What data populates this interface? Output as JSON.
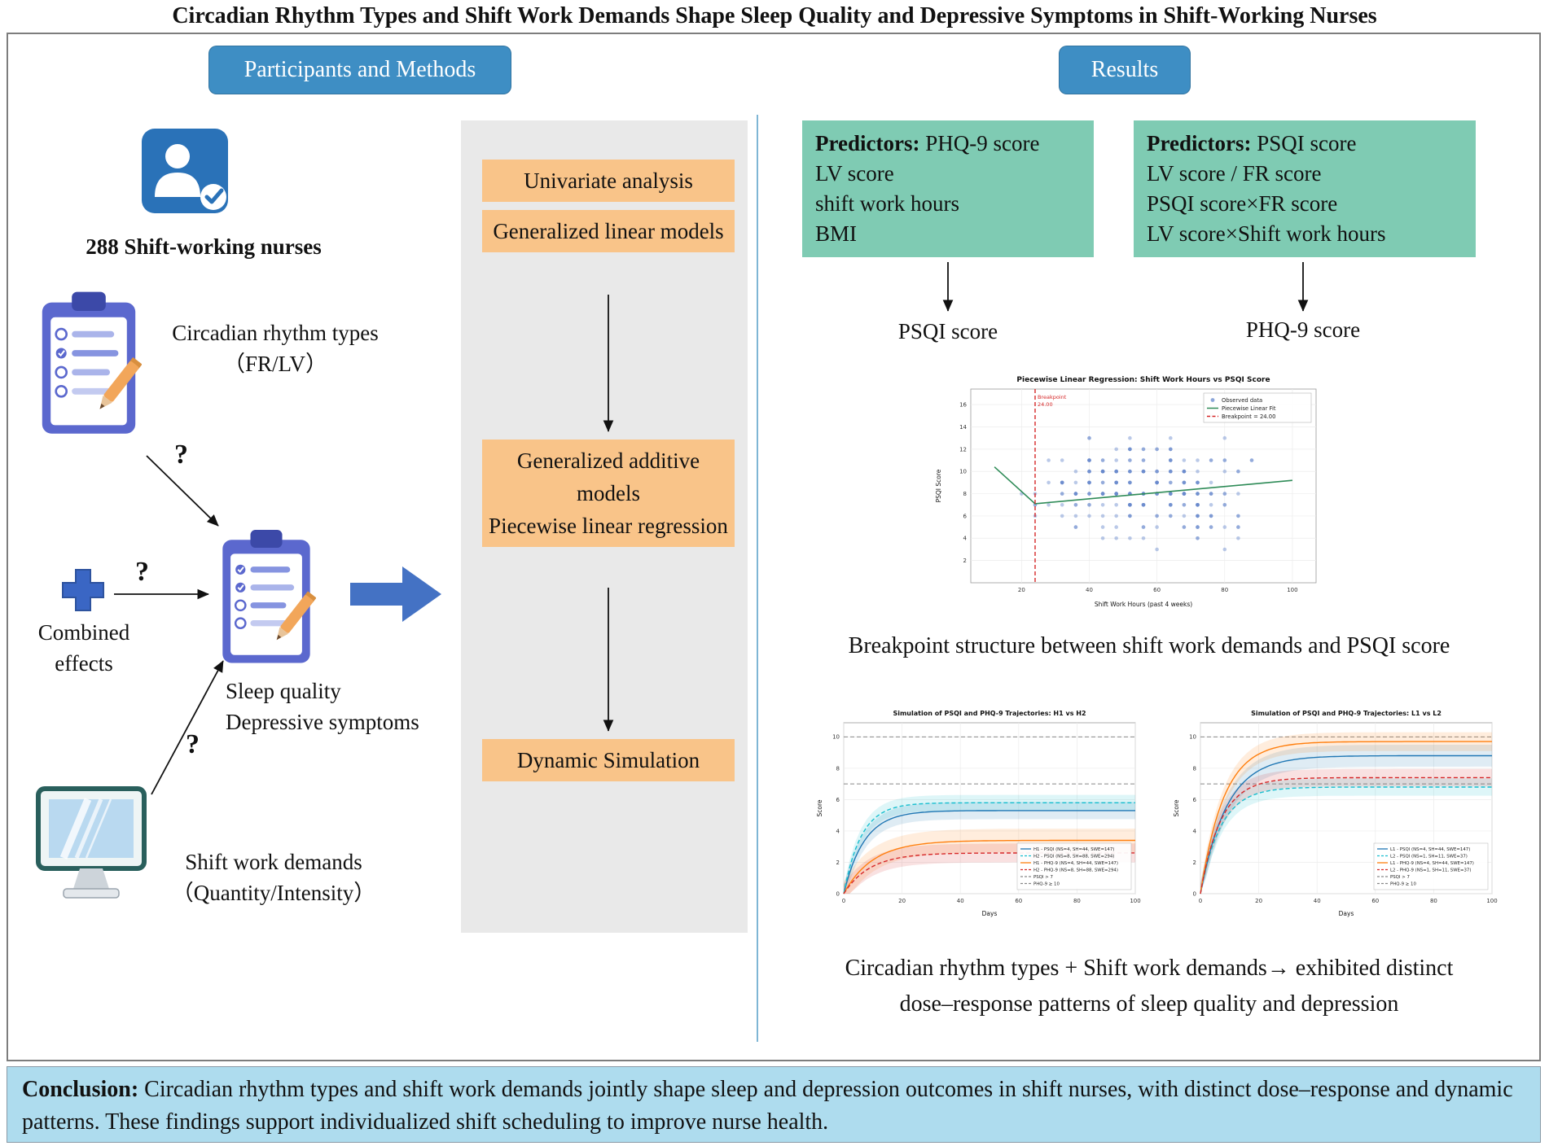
{
  "title": "Circadian Rhythm Types and Shift Work Demands Shape Sleep Quality and Depressive Symptoms in Shift-Working Nurses",
  "sections": {
    "methods_header": "Participants and Methods",
    "results_header": "Results"
  },
  "participants": {
    "count_label": "288 Shift-working nurses",
    "question_mark": "?",
    "circadian": {
      "line1": "Circadian rhythm types",
      "line2": "（FR/LV）"
    },
    "combined": {
      "line1": "Combined",
      "line2": "effects"
    },
    "outcomes": {
      "line1": "Sleep quality",
      "line2": "Depressive symptoms"
    },
    "shift": {
      "line1": "Shift work demands",
      "line2": "（Quantity/Intensity）"
    }
  },
  "methods_flow": {
    "step1": "Univariate analysis",
    "step2": "Generalized linear models",
    "step3a": "Generalized additive models",
    "step3b": "Piecewise linear regression",
    "step4": "Dynamic Simulation"
  },
  "results": {
    "predictor_left": {
      "bold": "Predictors:",
      "rest": "PHQ-9 score",
      "lines": [
        "LV score",
        "shift work hours",
        "BMI"
      ],
      "outcome": "PSQI score"
    },
    "predictor_right": {
      "bold": "Predictors:",
      "rest": "PSQI score",
      "lines": [
        "LV score / FR score",
        "PSQI score×FR score",
        "LV score×Shift work hours"
      ],
      "outcome": "PHQ-9 score"
    },
    "scatter_caption": "Breakpoint structure between shift work demands and PSQI score",
    "sim_caption_line1": "Circadian rhythm types + Shift work demands→ exhibited distinct",
    "sim_caption_line2": "dose–response patterns of sleep quality and depression"
  },
  "conclusion": {
    "bold": "Conclusion:",
    "text": " Circadian rhythm types and shift work demands jointly shape sleep and depression outcomes in shift nurses, with distinct dose–response and dynamic patterns. These findings support individualized shift scheduling to improve nurse health."
  },
  "icons": {
    "nurses-icon": "person-with-check-badge",
    "circadian-questionnaire-icon": "clipboard-checklist-with-pencil",
    "combined-effects-icon": "plus-cross",
    "outcomes-questionnaire-icon": "clipboard-checklist-with-pencil",
    "shift-work-monitor-icon": "computer-monitor",
    "flow-arrow-icon": "right-block-arrow"
  },
  "colors": {
    "header_pill": "#3e8ec4",
    "step_box": "#f9c489",
    "predictor_box": "#7fcbb3",
    "conclusion_bg": "#aedcee",
    "panel_bg": "#e9e9e9",
    "accent_arrow": "#4472c4",
    "divider": "#7fb6d5"
  },
  "chart_data": [
    {
      "id": "piecewise",
      "type": "scatter",
      "title": "Piecewise Linear Regression: Shift Work Hours vs PSQI Score",
      "xlabel": "Shift Work Hours (past 4 weeks)",
      "ylabel": "PSQI Score",
      "xlim": [
        5,
        107
      ],
      "ylim": [
        0,
        17.4
      ],
      "xticks": [
        20,
        40,
        60,
        80,
        100
      ],
      "yticks": [
        2,
        4,
        6,
        8,
        10,
        12,
        14,
        16
      ],
      "breakpoint": 24,
      "breakpoint_label_1": "Breakpoint",
      "breakpoint_label_2": "24.00",
      "fit_line": [
        [
          12,
          10.4
        ],
        [
          24,
          7.1
        ],
        [
          100,
          9.2
        ]
      ],
      "scatter": {
        "seed": 11,
        "n": 270,
        "x_min": 12,
        "x_max": 102,
        "y_min": 1,
        "y_max": 16
      },
      "point_color": "#6688cc",
      "fit_color": "#2e8b57",
      "break_color": "#d62728",
      "legend": [
        {
          "label": "Observed data",
          "type": "point",
          "color": "#6688cc"
        },
        {
          "label": "Piecewise Linear Fit",
          "type": "line",
          "color": "#2e8b57"
        },
        {
          "label": "Breakpoint = 24.00",
          "type": "dashed",
          "color": "#d62728"
        }
      ]
    },
    {
      "id": "sim_h",
      "type": "line",
      "title": "Simulation of PSQI and PHQ-9 Trajectories: H1 vs H2",
      "xlabel": "Days",
      "ylabel": "Score",
      "xlim": [
        0,
        100
      ],
      "ylim": [
        0,
        10.9
      ],
      "xticks": [
        0,
        20,
        40,
        60,
        80,
        100
      ],
      "yticks": [
        0,
        2,
        4,
        6,
        8,
        10
      ],
      "thresholds": [
        {
          "y": 7,
          "label": "PSQI > 7"
        },
        {
          "y": 10,
          "label": "PHQ-9 ≥ 10"
        }
      ],
      "series": [
        {
          "name": "H1 - PSQI (NS=4, SH=44, SWE=147)",
          "plateau": 5.3,
          "tau": 7,
          "color": "#1f77b4",
          "dash": false,
          "band": 0.55
        },
        {
          "name": "H2 - PSQI (NS=8, SH=88, SWE=294)",
          "plateau": 5.8,
          "tau": 6,
          "color": "#17becf",
          "dash": true,
          "band": 0.5
        },
        {
          "name": "H1 - PHQ-9 (NS=4, SH=44, SWE=147)",
          "plateau": 3.4,
          "tau": 10,
          "color": "#ff7f0e",
          "dash": false,
          "band": 0.75
        },
        {
          "name": "H2 - PHQ-9 (NS=8, SH=88, SWE=294)",
          "plateau": 2.6,
          "tau": 9,
          "color": "#d62728",
          "dash": true,
          "band": 0.6
        }
      ]
    },
    {
      "id": "sim_l",
      "type": "line",
      "title": "Simulation of PSQI and PHQ-9 Trajectories: L1 vs L2",
      "xlabel": "Days",
      "ylabel": "Score",
      "xlim": [
        0,
        100
      ],
      "ylim": [
        0,
        10.9
      ],
      "xticks": [
        0,
        20,
        40,
        60,
        80,
        100
      ],
      "yticks": [
        0,
        2,
        4,
        6,
        8,
        10
      ],
      "thresholds": [
        {
          "y": 7,
          "label": "PSQI > 7"
        },
        {
          "y": 10,
          "label": "PHQ-9 ≥ 10"
        }
      ],
      "series": [
        {
          "name": "L1 - PSQI (NS=4, SH=44, SWE=147)",
          "plateau": 8.8,
          "tau": 9,
          "color": "#1f77b4",
          "dash": false,
          "band": 0.7
        },
        {
          "name": "L2 - PSQI (NS=1, SH=11, SWE=37)",
          "plateau": 6.8,
          "tau": 7,
          "color": "#17becf",
          "dash": true,
          "band": 0.55
        },
        {
          "name": "L1 - PHQ-9 (NS=4, SH=44, SWE=147)",
          "plateau": 9.7,
          "tau": 8,
          "color": "#ff7f0e",
          "dash": false,
          "band": 0.6
        },
        {
          "name": "L2 - PHQ-9 (NS=1, SH=11, SWE=37)",
          "plateau": 7.4,
          "tau": 7,
          "color": "#d62728",
          "dash": true,
          "band": 0.55
        }
      ]
    }
  ]
}
